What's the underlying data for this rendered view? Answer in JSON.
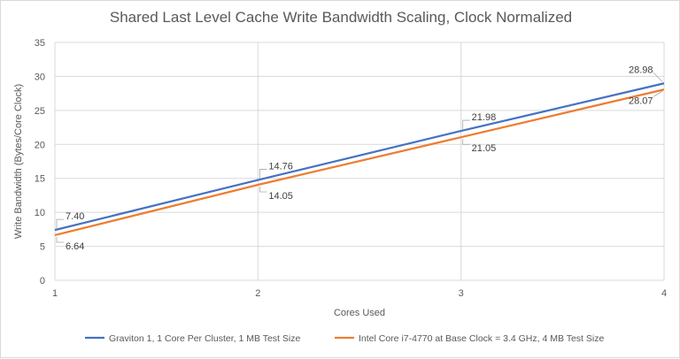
{
  "chart_data": {
    "type": "line",
    "title": "Shared Last Level Cache Write Bandwidth Scaling, Clock Normalized",
    "xlabel": "Cores Used",
    "ylabel": "Write Bandwidth (Bytes/Core Clock)",
    "x": [
      1,
      2,
      3,
      4
    ],
    "xlim": [
      1,
      4
    ],
    "ylim": [
      0,
      35
    ],
    "yticks": [
      0,
      5,
      10,
      15,
      20,
      25,
      30,
      35
    ],
    "xticks": [
      1,
      2,
      3,
      4
    ],
    "grid": true,
    "legend_position": "bottom",
    "series": [
      {
        "name": "Graviton 1, 1 Core Per Cluster, 1 MB Test Size",
        "color": "#4472c4",
        "values": [
          7.4,
          14.76,
          21.98,
          28.98
        ],
        "labels": [
          "7.40",
          "14.76",
          "21.98",
          "28.98"
        ]
      },
      {
        "name": "Intel Core i7-4770 at Base Clock = 3.4 GHz, 4 MB Test Size",
        "color": "#ed7d31",
        "values": [
          6.64,
          14.05,
          21.05,
          28.07
        ],
        "labels": [
          "6.64",
          "14.05",
          "21.05",
          "28.07"
        ]
      }
    ]
  }
}
